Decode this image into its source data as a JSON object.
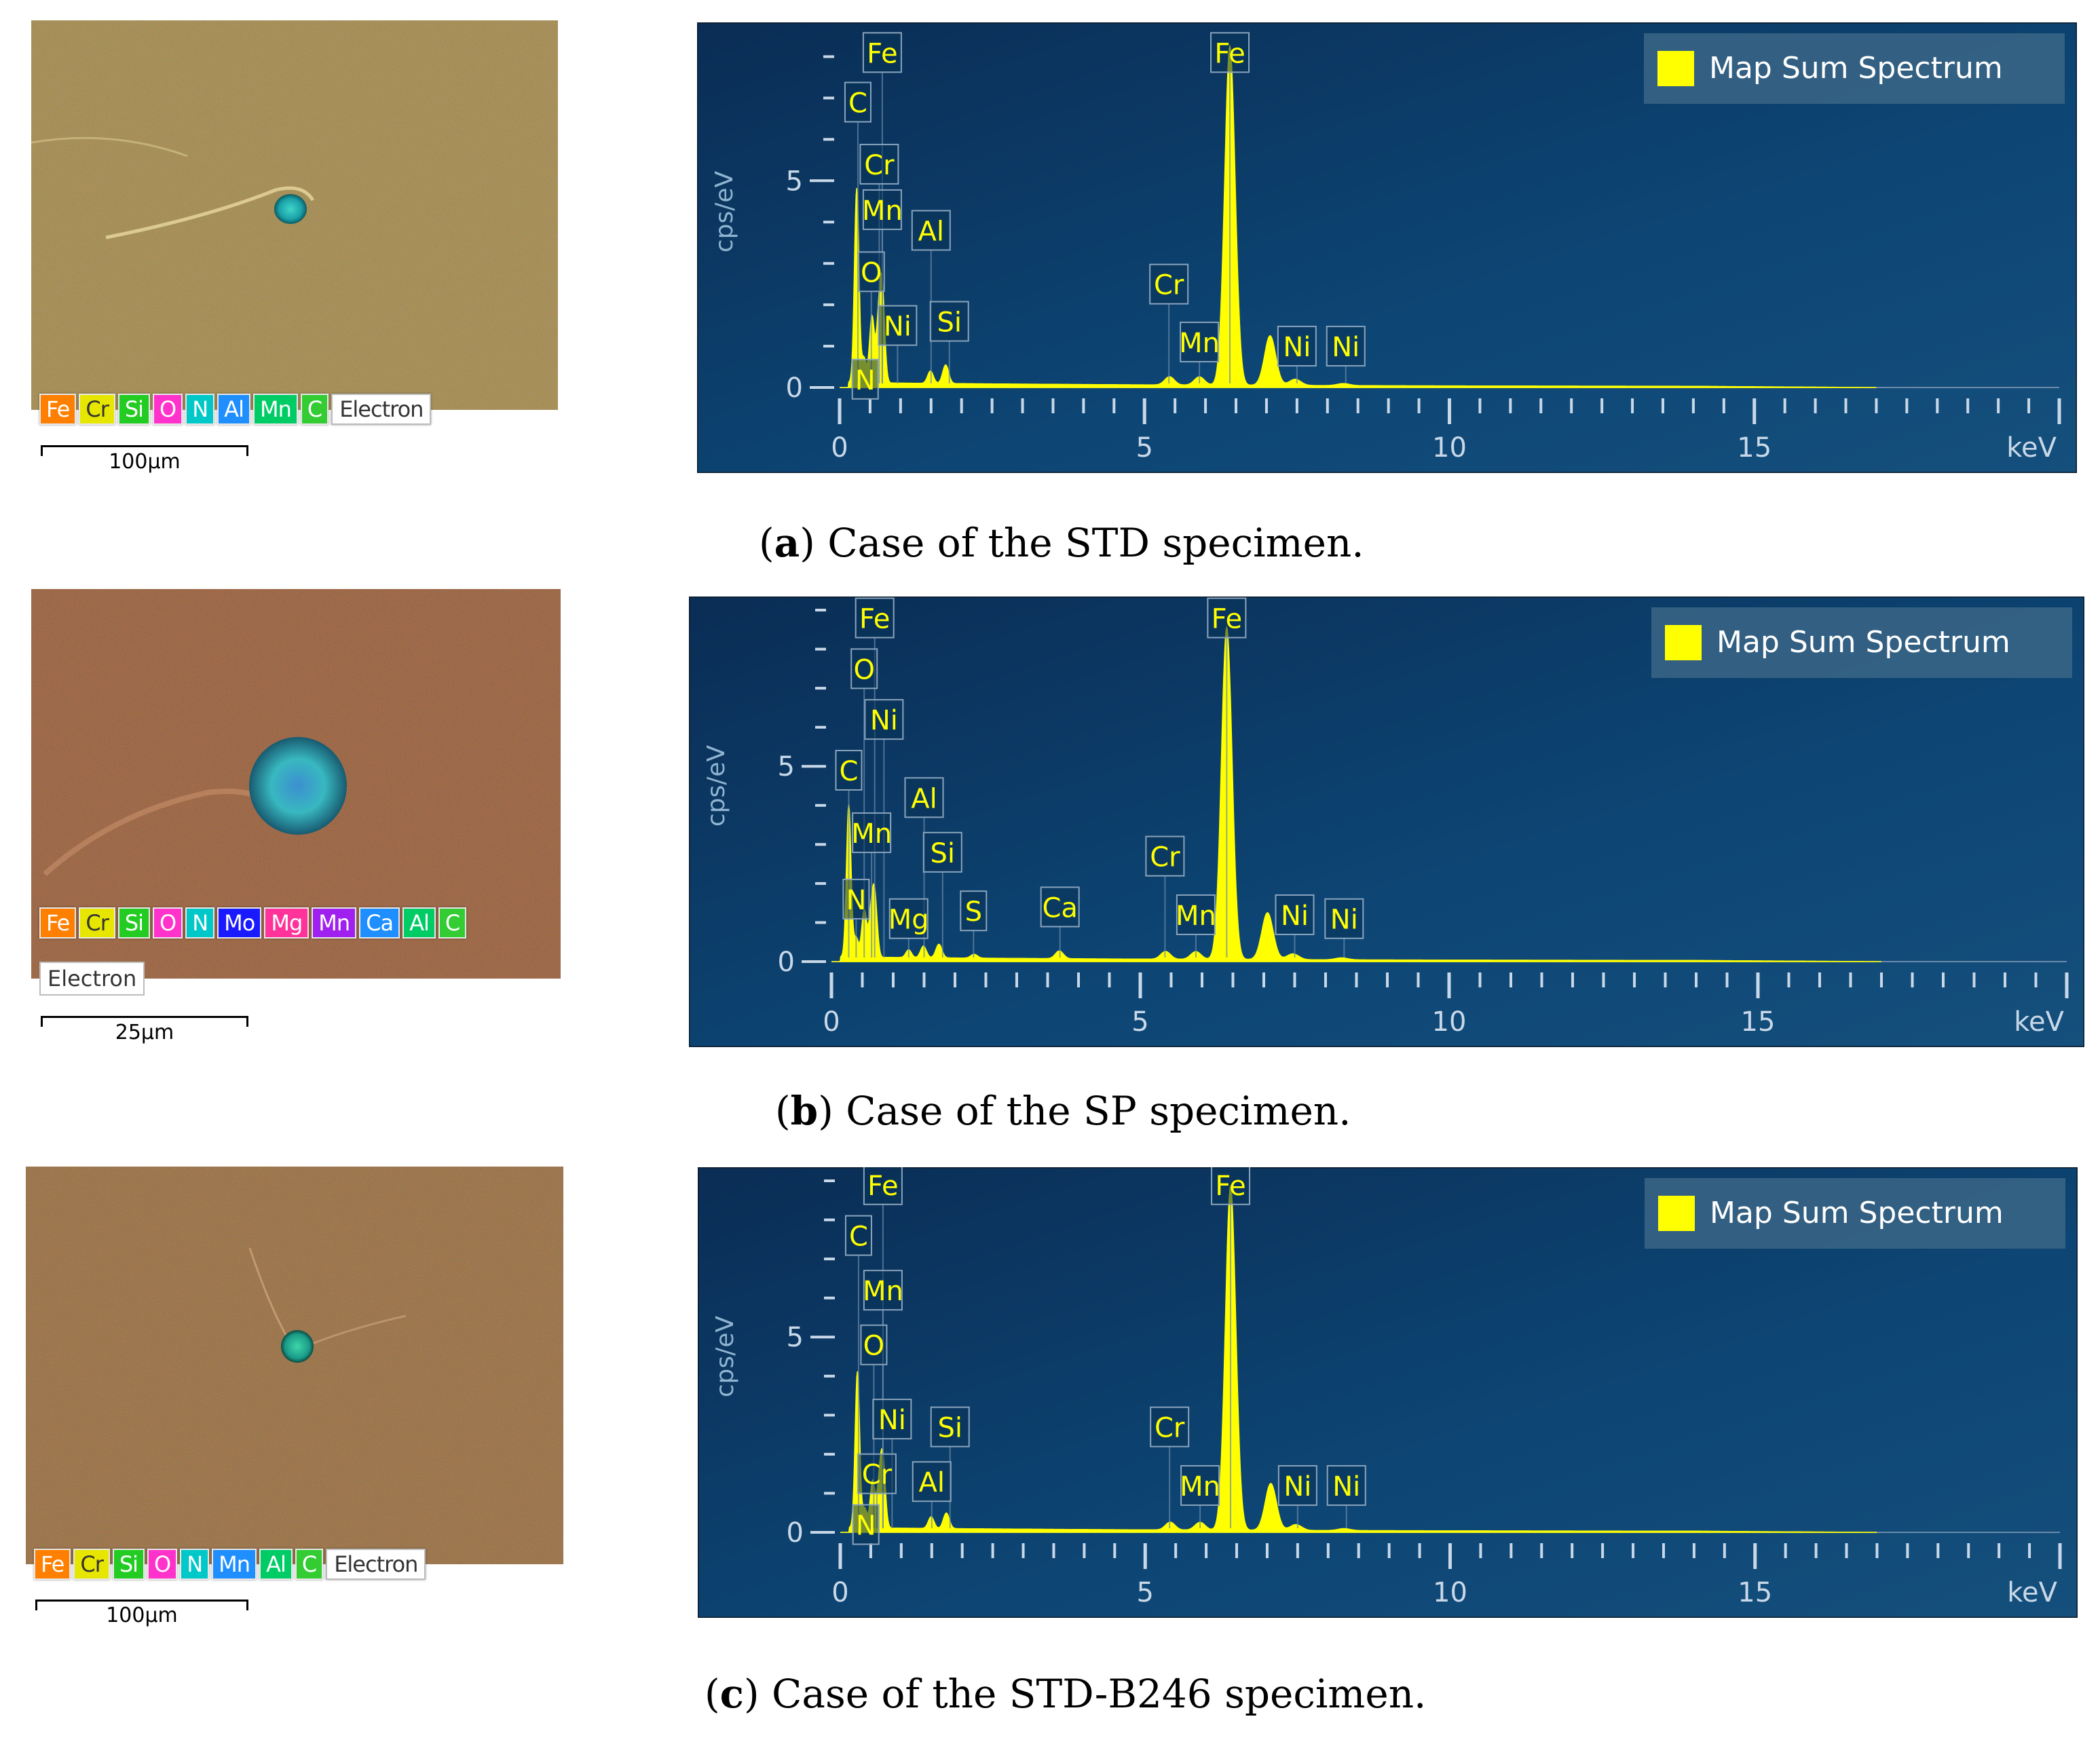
{
  "panels": [
    {
      "id": "a",
      "caption_letter": "a",
      "caption_text": ") Case of the STD specimen.",
      "sem_legend": [
        {
          "label": "Fe",
          "color": "#ff7f00"
        },
        {
          "label": "Cr",
          "color": "#e6e600"
        },
        {
          "label": "Si",
          "color": "#22cc22"
        },
        {
          "label": "O",
          "color": "#ff33cc"
        },
        {
          "label": "N",
          "color": "#00c8c8"
        },
        {
          "label": "Al",
          "color": "#1f8fff"
        },
        {
          "label": "Mn",
          "color": "#00cc66"
        },
        {
          "label": "C",
          "color": "#33cc33"
        }
      ],
      "electron_label": "Electron",
      "scale_label": "100µm",
      "chart_data": {
        "type": "line",
        "legend": "Map Sum Spectrum",
        "legend_position": "top-right",
        "series": [
          {
            "name": "Map Sum Spectrum",
            "color": "#ffff00"
          }
        ],
        "ylabel": "cps/eV",
        "xlabel": "keV",
        "x_ticks": [
          "0",
          "5",
          "10",
          "15"
        ],
        "y_ticks": [
          "0",
          "5"
        ],
        "xlim": [
          0,
          20
        ],
        "ylim": [
          0,
          8.5
        ],
        "peaks": [
          [
            0.28,
            4.7
          ],
          [
            0.4,
            0.6
          ],
          [
            0.53,
            1.6
          ],
          [
            0.64,
            1.3
          ],
          [
            0.7,
            2.1
          ],
          [
            1.49,
            0.3
          ],
          [
            1.74,
            0.45
          ],
          [
            5.41,
            0.2
          ],
          [
            5.9,
            0.2
          ],
          [
            6.4,
            8.2
          ],
          [
            7.06,
            1.2
          ],
          [
            7.47,
            0.15
          ],
          [
            8.26,
            0.05
          ]
        ],
        "peak_labels": [
          {
            "text": "Fe",
            "x": 0.7,
            "y": 8.1
          },
          {
            "text": "C",
            "x": 0.3,
            "y": 6.9
          },
          {
            "text": "Cr",
            "x": 0.65,
            "y": 5.4
          },
          {
            "text": "Mn",
            "x": 0.7,
            "y": 4.3
          },
          {
            "text": "O",
            "x": 0.52,
            "y": 2.8
          },
          {
            "text": "N",
            "x": 0.42,
            "y": 0.2
          },
          {
            "text": "Al",
            "x": 1.5,
            "y": 3.8
          },
          {
            "text": "Ni",
            "x": 0.95,
            "y": 1.5
          },
          {
            "text": "Si",
            "x": 1.8,
            "y": 1.6
          },
          {
            "text": "Cr",
            "x": 5.4,
            "y": 2.5
          },
          {
            "text": "Mn",
            "x": 5.9,
            "y": 1.1
          },
          {
            "text": "Fe",
            "x": 6.4,
            "y": 8.1
          },
          {
            "text": "Ni",
            "x": 7.5,
            "y": 1.0
          },
          {
            "text": "Ni",
            "x": 8.3,
            "y": 1.0
          }
        ]
      }
    },
    {
      "id": "b",
      "caption_letter": "b",
      "caption_text": ") Case of the SP specimen.",
      "sem_legend": [
        {
          "label": "Fe",
          "color": "#ff7f00"
        },
        {
          "label": "Cr",
          "color": "#e6e600"
        },
        {
          "label": "Si",
          "color": "#22cc22"
        },
        {
          "label": "O",
          "color": "#ff33cc"
        },
        {
          "label": "N",
          "color": "#00c8c8"
        },
        {
          "label": "Mo",
          "color": "#1a1aff"
        },
        {
          "label": "Mg",
          "color": "#ff3399"
        },
        {
          "label": "Mn",
          "color": "#a020f0"
        },
        {
          "label": "Ca",
          "color": "#1f8fff"
        },
        {
          "label": "Al",
          "color": "#00cc66"
        },
        {
          "label": "C",
          "color": "#33cc33"
        }
      ],
      "electron_label": "Electron",
      "scale_label": "25µm",
      "chart_data": {
        "type": "line",
        "legend": "Map Sum Spectrum",
        "legend_position": "top-right",
        "series": [
          {
            "name": "Map Sum Spectrum",
            "color": "#ffff00"
          }
        ],
        "ylabel": "cps/eV",
        "xlabel": "keV",
        "x_ticks": [
          "0",
          "5",
          "10",
          "15"
        ],
        "y_ticks": [
          "0",
          "5"
        ],
        "xlim": [
          0,
          20
        ],
        "ylim": [
          0,
          9
        ],
        "peaks": [
          [
            0.28,
            3.9
          ],
          [
            0.4,
            0.5
          ],
          [
            0.53,
            1.2
          ],
          [
            0.64,
            0.9
          ],
          [
            0.7,
            1.5
          ],
          [
            1.25,
            0.2
          ],
          [
            1.49,
            0.3
          ],
          [
            1.74,
            0.35
          ],
          [
            2.31,
            0.1
          ],
          [
            3.69,
            0.2
          ],
          [
            5.41,
            0.2
          ],
          [
            5.9,
            0.2
          ],
          [
            6.4,
            8.5
          ],
          [
            7.06,
            1.2
          ],
          [
            7.47,
            0.15
          ],
          [
            8.26,
            0.05
          ]
        ],
        "peak_labels": [
          {
            "text": "Fe",
            "x": 0.7,
            "y": 8.8
          },
          {
            "text": "O",
            "x": 0.53,
            "y": 7.5
          },
          {
            "text": "Ni",
            "x": 0.85,
            "y": 6.2
          },
          {
            "text": "C",
            "x": 0.28,
            "y": 4.9
          },
          {
            "text": "Al",
            "x": 1.5,
            "y": 4.2
          },
          {
            "text": "Mn",
            "x": 0.65,
            "y": 3.3
          },
          {
            "text": "Si",
            "x": 1.8,
            "y": 2.8
          },
          {
            "text": "N",
            "x": 0.4,
            "y": 1.6
          },
          {
            "text": "Mg",
            "x": 1.25,
            "y": 1.1
          },
          {
            "text": "S",
            "x": 2.3,
            "y": 1.3
          },
          {
            "text": "Ca",
            "x": 3.7,
            "y": 1.4
          },
          {
            "text": "Cr",
            "x": 5.4,
            "y": 2.7
          },
          {
            "text": "Mn",
            "x": 5.9,
            "y": 1.2
          },
          {
            "text": "Fe",
            "x": 6.4,
            "y": 8.8
          },
          {
            "text": "Ni",
            "x": 7.5,
            "y": 1.2
          },
          {
            "text": "Ni",
            "x": 8.3,
            "y": 1.1
          }
        ]
      }
    },
    {
      "id": "c",
      "caption_letter": "c",
      "caption_text": ") Case of the STD-B246 specimen.",
      "sem_legend": [
        {
          "label": "Fe",
          "color": "#ff7f00"
        },
        {
          "label": "Cr",
          "color": "#e6e600"
        },
        {
          "label": "Si",
          "color": "#22cc22"
        },
        {
          "label": "O",
          "color": "#ff33cc"
        },
        {
          "label": "N",
          "color": "#00c8c8"
        },
        {
          "label": "Mn",
          "color": "#1f8fff"
        },
        {
          "label": "Al",
          "color": "#00cc66"
        },
        {
          "label": "C",
          "color": "#33cc33"
        }
      ],
      "electron_label": "Electron",
      "scale_label": "100µm",
      "chart_data": {
        "type": "line",
        "legend": "Map Sum Spectrum",
        "legend_position": "top-right",
        "series": [
          {
            "name": "Map Sum Spectrum",
            "color": "#ffff00"
          }
        ],
        "ylabel": "cps/eV",
        "xlabel": "keV",
        "x_ticks": [
          "0",
          "5",
          "10",
          "15"
        ],
        "y_ticks": [
          "0",
          "5"
        ],
        "xlim": [
          0,
          20
        ],
        "ylim": [
          0,
          9
        ],
        "peaks": [
          [
            0.28,
            4.0
          ],
          [
            0.4,
            0.5
          ],
          [
            0.53,
            1.2
          ],
          [
            0.64,
            1.0
          ],
          [
            0.7,
            1.6
          ],
          [
            1.49,
            0.3
          ],
          [
            1.74,
            0.4
          ],
          [
            5.41,
            0.2
          ],
          [
            5.9,
            0.2
          ],
          [
            6.4,
            8.8
          ],
          [
            7.06,
            1.2
          ],
          [
            7.47,
            0.15
          ],
          [
            8.26,
            0.05
          ]
        ],
        "peak_labels": [
          {
            "text": "Fe",
            "x": 0.7,
            "y": 8.9
          },
          {
            "text": "C",
            "x": 0.3,
            "y": 7.6
          },
          {
            "text": "Mn",
            "x": 0.7,
            "y": 6.2
          },
          {
            "text": "O",
            "x": 0.55,
            "y": 4.8
          },
          {
            "text": "Ni",
            "x": 0.85,
            "y": 2.9
          },
          {
            "text": "Si",
            "x": 1.8,
            "y": 2.7
          },
          {
            "text": "Cr",
            "x": 0.6,
            "y": 1.5
          },
          {
            "text": "N",
            "x": 0.42,
            "y": 0.2
          },
          {
            "text": "Al",
            "x": 1.5,
            "y": 1.3
          },
          {
            "text": "Cr",
            "x": 5.4,
            "y": 2.7
          },
          {
            "text": "Mn",
            "x": 5.9,
            "y": 1.2
          },
          {
            "text": "Fe",
            "x": 6.4,
            "y": 8.9
          },
          {
            "text": "Ni",
            "x": 7.5,
            "y": 1.2
          },
          {
            "text": "Ni",
            "x": 8.3,
            "y": 1.2
          }
        ]
      }
    }
  ]
}
